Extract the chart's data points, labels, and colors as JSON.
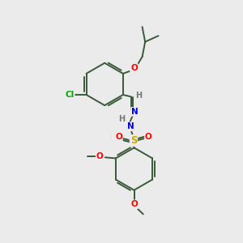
{
  "background_color": "#ebebeb",
  "bond_color": "#3a5a3a",
  "atom_colors": {
    "O": "#ff0000",
    "N": "#0000ee",
    "S": "#ccaa00",
    "Cl": "#00aa00",
    "H": "#777777",
    "C": "#3a5a3a"
  },
  "figsize": [
    3.0,
    3.0
  ],
  "dpi": 100
}
